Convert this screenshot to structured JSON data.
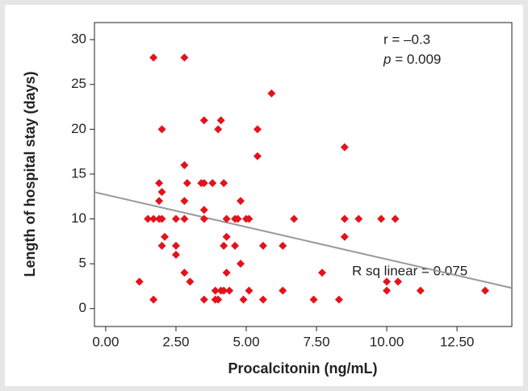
{
  "chart_data": {
    "type": "scatter",
    "x_label": "Procalcitonin (ng/mL)",
    "y_label": "Length of hospital stay (days)",
    "color": "#e4121b",
    "xlim": [
      -0.4,
      14.45
    ],
    "ylim": [
      -2.0,
      31.9
    ],
    "xticks": [
      {
        "value": 0,
        "label": "0.00"
      },
      {
        "value": 2.5,
        "label": "2.50"
      },
      {
        "value": 5,
        "label": "5.00"
      },
      {
        "value": 7.5,
        "label": "7.50"
      },
      {
        "value": 10,
        "label": "10.00"
      },
      {
        "value": 12.5,
        "label": "12.50"
      }
    ],
    "yticks": [
      0,
      5,
      10,
      15,
      20,
      25,
      30
    ],
    "fit": {
      "intercept": 12.7,
      "slope": -0.72,
      "color": "#999999"
    },
    "annotations": {
      "r": "r = –0.3",
      "p_symbol": "p",
      "p_text": " = 0.009",
      "r_sq": "R sq linear = 0.075"
    },
    "x": [
      1.2,
      1.7,
      1.5,
      1.7,
      1.7,
      1.9,
      1.9,
      1.9,
      2.0,
      2.0,
      2.0,
      2.0,
      2.1,
      2.5,
      2.5,
      2.5,
      2.8,
      2.8,
      2.8,
      2.8,
      2.8,
      2.9,
      3.0,
      3.5,
      3.4,
      3.5,
      3.5,
      3.5,
      3.5,
      3.8,
      3.9,
      3.9,
      4.0,
      4.1,
      4.0,
      4.1,
      4.2,
      4.2,
      4.3,
      4.3,
      4.2,
      4.3,
      4.4,
      4.6,
      4.6,
      4.7,
      4.8,
      4.8,
      4.9,
      5.0,
      5.1,
      5.1,
      5.4,
      5.4,
      5.6,
      5.6,
      5.9,
      6.3,
      6.3,
      6.7,
      7.4,
      7.7,
      8.3,
      8.5,
      8.5,
      8.5,
      9.0,
      9.8,
      10.0,
      10.0,
      10.3,
      10.4,
      11.2,
      13.5
    ],
    "y": [
      3,
      28,
      10,
      10,
      1,
      14,
      12,
      10,
      13,
      20,
      10,
      7,
      8,
      10,
      7,
      6,
      28,
      16,
      12,
      10,
      4,
      14,
      3,
      21,
      14,
      14,
      11,
      10,
      1,
      14,
      1,
      2,
      20,
      21,
      1,
      2,
      14,
      2,
      10,
      8,
      7,
      4,
      2,
      10,
      7,
      10,
      12,
      5,
      1,
      10,
      10,
      2,
      20,
      17,
      7,
      1,
      24,
      7,
      2,
      10,
      1,
      4,
      1,
      18,
      10,
      8,
      10,
      10,
      3,
      2,
      10,
      3,
      2,
      2
    ]
  }
}
